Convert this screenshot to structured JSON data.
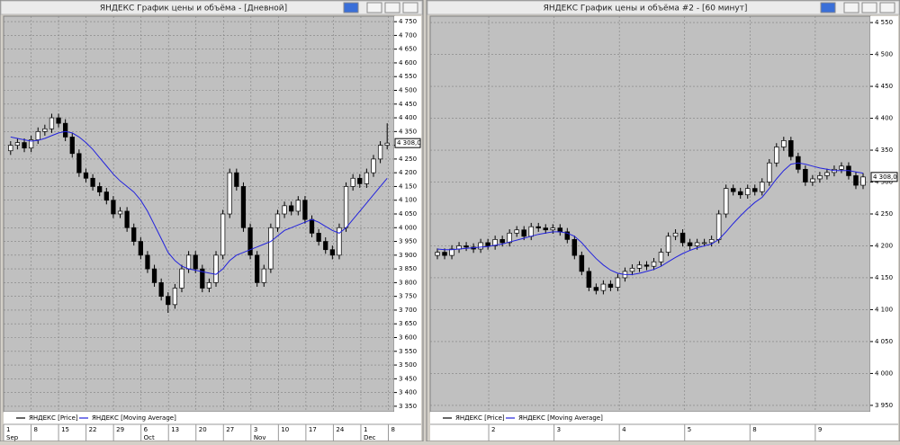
{
  "chart_data": [
    {
      "type": "candlestick",
      "title": "ЯНДЕКС График цены и объёма - [Дневной]",
      "series": [
        {
          "name": "ЯНДЕКС [Price]",
          "color": "#000000",
          "ohlc": [
            [
              4280,
              4315,
              4265,
              4300
            ],
            [
              4300,
              4325,
              4285,
              4310
            ],
            [
              4310,
              4325,
              4275,
              4290
            ],
            [
              4290,
              4335,
              4275,
              4320
            ],
            [
              4320,
              4365,
              4305,
              4350
            ],
            [
              4350,
              4375,
              4335,
              4360
            ],
            [
              4360,
              4415,
              4345,
              4400
            ],
            [
              4400,
              4415,
              4365,
              4380
            ],
            [
              4380,
              4395,
              4315,
              4330
            ],
            [
              4330,
              4345,
              4255,
              4270
            ],
            [
              4270,
              4285,
              4185,
              4200
            ],
            [
              4200,
              4215,
              4165,
              4180
            ],
            [
              4180,
              4195,
              4135,
              4150
            ],
            [
              4150,
              4165,
              4115,
              4130
            ],
            [
              4130,
              4145,
              4085,
              4100
            ],
            [
              4100,
              4115,
              4035,
              4050
            ],
            [
              4050,
              4075,
              4035,
              4060
            ],
            [
              4060,
              4075,
              3985,
              4000
            ],
            [
              4000,
              4015,
              3935,
              3950
            ],
            [
              3950,
              3965,
              3885,
              3900
            ],
            [
              3900,
              3915,
              3835,
              3850
            ],
            [
              3850,
              3865,
              3785,
              3800
            ],
            [
              3800,
              3815,
              3735,
              3750
            ],
            [
              3750,
              3765,
              3690,
              3720
            ],
            [
              3720,
              3795,
              3705,
              3780
            ],
            [
              3780,
              3865,
              3765,
              3850
            ],
            [
              3850,
              3915,
              3835,
              3900
            ],
            [
              3900,
              3915,
              3835,
              3850
            ],
            [
              3850,
              3865,
              3765,
              3780
            ],
            [
              3780,
              3815,
              3765,
              3800
            ],
            [
              3800,
              3915,
              3785,
              3900
            ],
            [
              3900,
              4065,
              3885,
              4050
            ],
            [
              4050,
              4215,
              4035,
              4200
            ],
            [
              4200,
              4215,
              4135,
              4150
            ],
            [
              4150,
              4165,
              3985,
              4000
            ],
            [
              4000,
              4015,
              3885,
              3900
            ],
            [
              3900,
              3915,
              3785,
              3800
            ],
            [
              3800,
              3865,
              3785,
              3850
            ],
            [
              3850,
              4015,
              3835,
              4000
            ],
            [
              4000,
              4065,
              3985,
              4050
            ],
            [
              4050,
              4095,
              4035,
              4080
            ],
            [
              4080,
              4095,
              4045,
              4060
            ],
            [
              4060,
              4115,
              4045,
              4100
            ],
            [
              4100,
              4115,
              4015,
              4030
            ],
            [
              4030,
              4045,
              3965,
              3980
            ],
            [
              3980,
              3995,
              3935,
              3950
            ],
            [
              3950,
              3965,
              3905,
              3920
            ],
            [
              3920,
              3935,
              3885,
              3900
            ],
            [
              3900,
              4015,
              3885,
              4000
            ],
            [
              4000,
              4165,
              3985,
              4150
            ],
            [
              4150,
              4195,
              4135,
              4180
            ],
            [
              4180,
              4195,
              4145,
              4160
            ],
            [
              4160,
              4215,
              4145,
              4200
            ],
            [
              4200,
              4265,
              4185,
              4250
            ],
            [
              4250,
              4315,
              4235,
              4300
            ],
            [
              4300,
              4380,
              4285,
              4308
            ]
          ]
        },
        {
          "name": "ЯНДЕКС [Moving Average]",
          "color": "#2222dd",
          "values": [
            4330,
            4325,
            4320,
            4315,
            4318,
            4325,
            4335,
            4345,
            4350,
            4345,
            4330,
            4310,
            4285,
            4255,
            4225,
            4195,
            4170,
            4150,
            4130,
            4100,
            4060,
            4010,
            3960,
            3910,
            3880,
            3860,
            3850,
            3845,
            3840,
            3835,
            3830,
            3850,
            3880,
            3900,
            3910,
            3920,
            3930,
            3940,
            3950,
            3970,
            3990,
            4000,
            4010,
            4020,
            4030,
            4020,
            4005,
            3990,
            3980,
            4000,
            4030,
            4060,
            4090,
            4120,
            4150,
            4180
          ]
        }
      ],
      "ylim": [
        3330,
        4770
      ],
      "yticks": [
        {
          "value": 3350,
          "label": "3 350"
        },
        {
          "value": 3400,
          "label": "3 400"
        },
        {
          "value": 3450,
          "label": "3 450"
        },
        {
          "value": 3500,
          "label": "3 500"
        },
        {
          "value": 3550,
          "label": "3 550"
        },
        {
          "value": 3600,
          "label": "3 600"
        },
        {
          "value": 3650,
          "label": "3 650"
        },
        {
          "value": 3700,
          "label": "3 700"
        },
        {
          "value": 3750,
          "label": "3 750"
        },
        {
          "value": 3800,
          "label": "3 800"
        },
        {
          "value": 3850,
          "label": "3 850"
        },
        {
          "value": 3900,
          "label": "3 900"
        },
        {
          "value": 3950,
          "label": "3 950"
        },
        {
          "value": 4000,
          "label": "4 000"
        },
        {
          "value": 4050,
          "label": "4 050"
        },
        {
          "value": 4100,
          "label": "4 100"
        },
        {
          "value": 4150,
          "label": "4 150"
        },
        {
          "value": 4200,
          "label": "4 200"
        },
        {
          "value": 4250,
          "label": "4 250"
        },
        {
          "value": 4300,
          "label": "4 300"
        },
        {
          "value": 4350,
          "label": "4 350"
        },
        {
          "value": 4400,
          "label": "4 400"
        },
        {
          "value": 4450,
          "label": "4 450"
        },
        {
          "value": 4500,
          "label": "4 500"
        },
        {
          "value": 4550,
          "label": "4 550"
        },
        {
          "value": 4600,
          "label": "4 600"
        },
        {
          "value": 4650,
          "label": "4 650"
        },
        {
          "value": 4700,
          "label": "4 700"
        },
        {
          "value": 4750,
          "label": "4 750"
        }
      ],
      "grid": true,
      "last_value": {
        "value": 4308,
        "label": "4 308,0"
      },
      "x_labels": [
        "1",
        "8",
        "15",
        "22",
        "29",
        "6",
        "13",
        "20",
        "27",
        "3",
        "10",
        "17",
        "24",
        "1",
        "8"
      ],
      "months": [
        "Sep",
        "Oct",
        "Nov",
        "Dec"
      ]
    },
    {
      "type": "candlestick",
      "title": "ЯНДЕКС График цены и объёма #2 - [60 минут]",
      "series": [
        {
          "name": "ЯНДЕКС [Price]",
          "color": "#000000",
          "ohlc": [
            [
              4185,
              4196,
              4179,
              4190
            ],
            [
              4190,
              4196,
              4179,
              4185
            ],
            [
              4185,
              4201,
              4179,
              4195
            ],
            [
              4195,
              4206,
              4189,
              4200
            ],
            [
              4200,
              4206,
              4192,
              4198
            ],
            [
              4198,
              4204,
              4189,
              4195
            ],
            [
              4195,
              4211,
              4189,
              4205
            ],
            [
              4205,
              4211,
              4194,
              4200
            ],
            [
              4200,
              4216,
              4194,
              4210
            ],
            [
              4210,
              4216,
              4199,
              4205
            ],
            [
              4205,
              4226,
              4199,
              4220
            ],
            [
              4220,
              4231,
              4214,
              4225
            ],
            [
              4225,
              4231,
              4209,
              4215
            ],
            [
              4215,
              4236,
              4209,
              4230
            ],
            [
              4230,
              4236,
              4222,
              4228
            ],
            [
              4228,
              4234,
              4219,
              4225
            ],
            [
              4225,
              4234,
              4219,
              4228
            ],
            [
              4228,
              4234,
              4216,
              4222
            ],
            [
              4222,
              4228,
              4204,
              4210
            ],
            [
              4210,
              4216,
              4179,
              4185
            ],
            [
              4185,
              4191,
              4154,
              4160
            ],
            [
              4160,
              4166,
              4129,
              4135
            ],
            [
              4135,
              4141,
              4124,
              4130
            ],
            [
              4130,
              4146,
              4124,
              4140
            ],
            [
              4140,
              4146,
              4129,
              4135
            ],
            [
              4135,
              4156,
              4129,
              4150
            ],
            [
              4150,
              4166,
              4144,
              4160
            ],
            [
              4160,
              4171,
              4154,
              4165
            ],
            [
              4165,
              4176,
              4159,
              4170
            ],
            [
              4170,
              4176,
              4162,
              4168
            ],
            [
              4168,
              4181,
              4162,
              4175
            ],
            [
              4175,
              4196,
              4169,
              4190
            ],
            [
              4190,
              4221,
              4184,
              4215
            ],
            [
              4215,
              4226,
              4209,
              4220
            ],
            [
              4220,
              4226,
              4199,
              4205
            ],
            [
              4205,
              4211,
              4194,
              4200
            ],
            [
              4200,
              4211,
              4194,
              4205
            ],
            [
              4205,
              4211,
              4199,
              4205
            ],
            [
              4205,
              4216,
              4199,
              4210
            ],
            [
              4210,
              4256,
              4204,
              4250
            ],
            [
              4250,
              4296,
              4244,
              4290
            ],
            [
              4290,
              4296,
              4279,
              4285
            ],
            [
              4285,
              4291,
              4274,
              4280
            ],
            [
              4280,
              4296,
              4274,
              4290
            ],
            [
              4290,
              4296,
              4279,
              4285
            ],
            [
              4285,
              4306,
              4279,
              4300
            ],
            [
              4300,
              4336,
              4294,
              4330
            ],
            [
              4330,
              4361,
              4324,
              4355
            ],
            [
              4355,
              4371,
              4349,
              4365
            ],
            [
              4365,
              4371,
              4334,
              4340
            ],
            [
              4340,
              4346,
              4314,
              4320
            ],
            [
              4320,
              4326,
              4294,
              4300
            ],
            [
              4300,
              4311,
              4294,
              4305
            ],
            [
              4305,
              4316,
              4299,
              4310
            ],
            [
              4310,
              4321,
              4304,
              4315
            ],
            [
              4315,
              4326,
              4309,
              4320
            ],
            [
              4320,
              4331,
              4314,
              4325
            ],
            [
              4325,
              4331,
              4304,
              4310
            ],
            [
              4310,
              4316,
              4289,
              4295
            ],
            [
              4295,
              4314,
              4289,
              4308
            ]
          ]
        },
        {
          "name": "ЯНДЕКС [Moving Average]",
          "color": "#2222dd",
          "values": [
            4195,
            4194,
            4194,
            4195,
            4196,
            4197,
            4198,
            4199,
            4201,
            4203,
            4206,
            4209,
            4212,
            4215,
            4218,
            4220,
            4222,
            4222,
            4220,
            4215,
            4205,
            4192,
            4180,
            4170,
            4162,
            4157,
            4155,
            4155,
            4157,
            4160,
            4163,
            4168,
            4175,
            4182,
            4188,
            4193,
            4197,
            4200,
            4203,
            4210,
            4222,
            4235,
            4247,
            4258,
            4268,
            4276,
            4290,
            4305,
            4318,
            4328,
            4330,
            4328,
            4325,
            4322,
            4320,
            4318,
            4318,
            4318,
            4316,
            4314
          ]
        }
      ],
      "ylim": [
        3940,
        4560
      ],
      "yticks": [
        {
          "value": 3950,
          "label": "3 950"
        },
        {
          "value": 4000,
          "label": "4 000"
        },
        {
          "value": 4050,
          "label": "4 050"
        },
        {
          "value": 4100,
          "label": "4 100"
        },
        {
          "value": 4150,
          "label": "4 150"
        },
        {
          "value": 4200,
          "label": "4 200"
        },
        {
          "value": 4250,
          "label": "4 250"
        },
        {
          "value": 4300,
          "label": "4 300"
        },
        {
          "value": 4350,
          "label": "4 350"
        },
        {
          "value": 4400,
          "label": "4 400"
        },
        {
          "value": 4450,
          "label": "4 450"
        },
        {
          "value": 4500,
          "label": "4 500"
        },
        {
          "value": 4550,
          "label": "4 550"
        }
      ],
      "grid": true,
      "last_value": {
        "value": 4308,
        "label": "4 308,0"
      },
      "x_labels": [
        "2",
        "3",
        "4",
        "5",
        "8",
        "9"
      ]
    }
  ]
}
